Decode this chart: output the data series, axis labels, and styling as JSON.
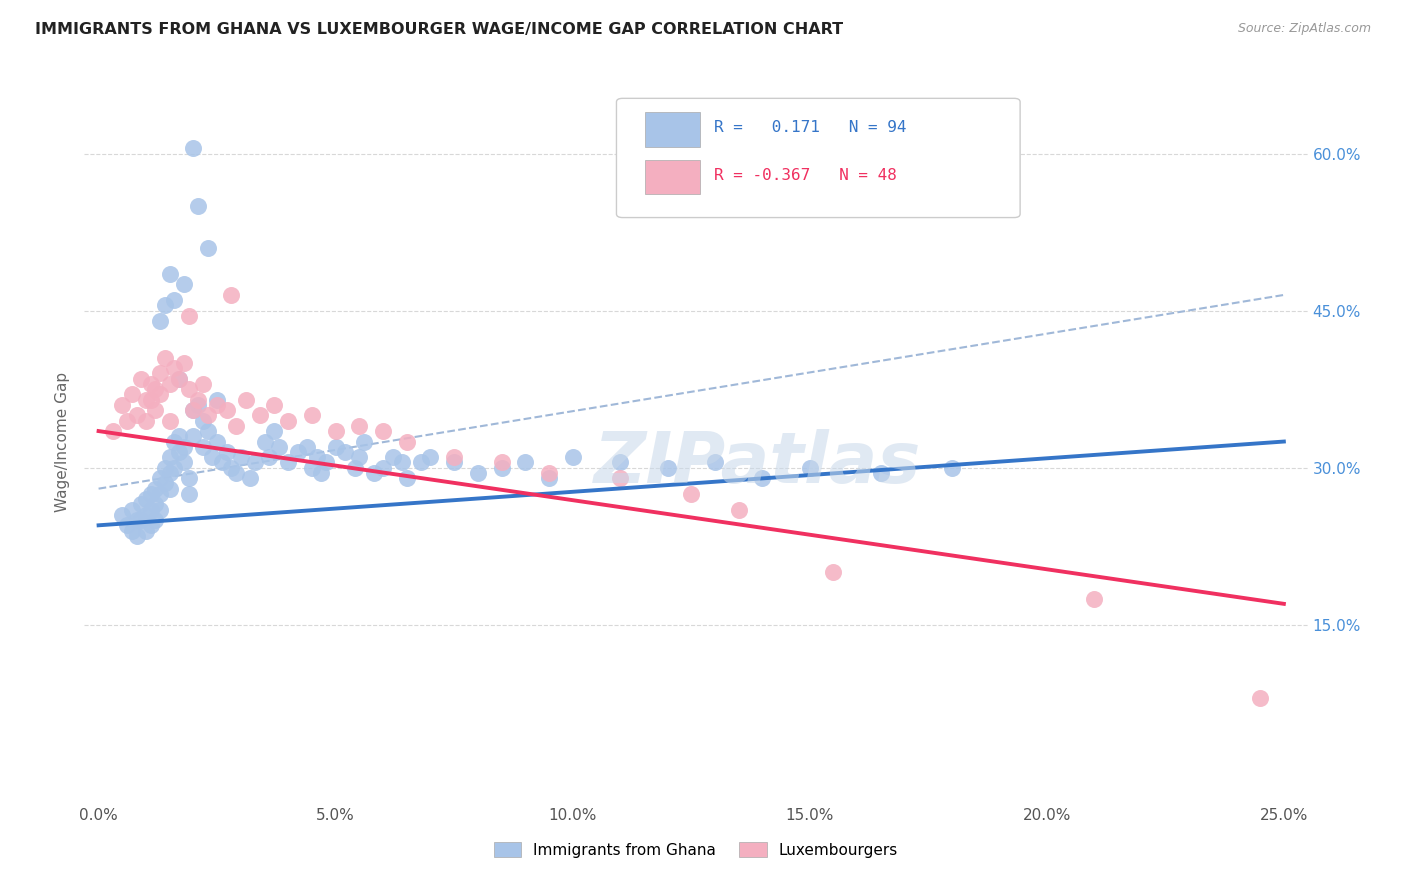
{
  "title": "IMMIGRANTS FROM GHANA VS LUXEMBOURGER WAGE/INCOME GAP CORRELATION CHART",
  "source": "Source: ZipAtlas.com",
  "ylabel": "Wage/Income Gap",
  "x_tick_labels": [
    "0.0%",
    "5.0%",
    "10.0%",
    "15.0%",
    "20.0%",
    "25.0%"
  ],
  "x_tick_values": [
    0.0,
    5.0,
    10.0,
    15.0,
    20.0,
    25.0
  ],
  "y_tick_labels_right": [
    "15.0%",
    "30.0%",
    "45.0%",
    "60.0%"
  ],
  "y_tick_values_right": [
    15.0,
    30.0,
    45.0,
    60.0
  ],
  "xlim": [
    -0.3,
    25.5
  ],
  "ylim": [
    -2.0,
    67.0
  ],
  "background_color": "#ffffff",
  "grid_color": "#d8d8d8",
  "blue_color": "#a8c4e8",
  "pink_color": "#f4afc0",
  "blue_line_color": "#3575c8",
  "pink_line_color": "#f03060",
  "dashed_line_color": "#a0b8d8",
  "R_blue": 0.171,
  "N_blue": 94,
  "R_pink": -0.367,
  "N_pink": 48,
  "legend_label_blue": "Immigrants from Ghana",
  "legend_label_pink": "Luxembourgers",
  "watermark": "ZIPatlas",
  "blue_trend_x": [
    0.0,
    25.0
  ],
  "blue_trend_y": [
    24.5,
    32.5
  ],
  "pink_trend_x": [
    0.0,
    25.0
  ],
  "pink_trend_y": [
    33.5,
    17.0
  ],
  "dashed_trend_x": [
    0.0,
    25.0
  ],
  "dashed_trend_y": [
    28.0,
    46.5
  ],
  "blue_scatter_x": [
    0.5,
    0.6,
    0.7,
    0.7,
    0.8,
    0.8,
    0.9,
    0.9,
    1.0,
    1.0,
    1.0,
    1.1,
    1.1,
    1.1,
    1.2,
    1.2,
    1.2,
    1.3,
    1.3,
    1.3,
    1.4,
    1.4,
    1.5,
    1.5,
    1.5,
    1.6,
    1.6,
    1.7,
    1.7,
    1.8,
    1.8,
    1.9,
    1.9,
    2.0,
    2.0,
    2.1,
    2.2,
    2.2,
    2.3,
    2.4,
    2.5,
    2.6,
    2.7,
    2.8,
    2.9,
    3.0,
    3.2,
    3.3,
    3.5,
    3.6,
    3.7,
    3.8,
    4.0,
    4.2,
    4.4,
    4.5,
    4.6,
    4.7,
    4.8,
    5.0,
    5.2,
    5.4,
    5.5,
    5.6,
    5.8,
    6.0,
    6.2,
    6.4,
    6.5,
    6.8,
    7.0,
    7.5,
    8.0,
    8.5,
    9.0,
    9.5,
    10.0,
    11.0,
    12.0,
    13.0,
    14.0,
    15.0,
    16.5,
    18.0,
    1.3,
    1.4,
    1.5,
    1.6,
    1.7,
    1.8,
    2.0,
    2.1,
    2.3,
    2.5
  ],
  "blue_scatter_y": [
    25.5,
    24.5,
    26.0,
    24.0,
    25.0,
    23.5,
    26.5,
    25.0,
    27.0,
    25.5,
    24.0,
    27.5,
    26.0,
    24.5,
    28.0,
    26.5,
    25.0,
    29.0,
    27.5,
    26.0,
    30.0,
    28.5,
    31.0,
    29.5,
    28.0,
    32.5,
    30.0,
    33.0,
    31.5,
    32.0,
    30.5,
    29.0,
    27.5,
    35.5,
    33.0,
    36.0,
    34.5,
    32.0,
    33.5,
    31.0,
    32.5,
    30.5,
    31.5,
    30.0,
    29.5,
    31.0,
    29.0,
    30.5,
    32.5,
    31.0,
    33.5,
    32.0,
    30.5,
    31.5,
    32.0,
    30.0,
    31.0,
    29.5,
    30.5,
    32.0,
    31.5,
    30.0,
    31.0,
    32.5,
    29.5,
    30.0,
    31.0,
    30.5,
    29.0,
    30.5,
    31.0,
    30.5,
    29.5,
    30.0,
    30.5,
    29.0,
    31.0,
    30.5,
    30.0,
    30.5,
    29.0,
    30.0,
    29.5,
    30.0,
    44.0,
    45.5,
    48.5,
    46.0,
    38.5,
    47.5,
    60.5,
    55.0,
    51.0,
    36.5
  ],
  "pink_scatter_x": [
    0.3,
    0.5,
    0.6,
    0.7,
    0.8,
    0.9,
    1.0,
    1.0,
    1.1,
    1.1,
    1.2,
    1.2,
    1.3,
    1.3,
    1.4,
    1.5,
    1.6,
    1.7,
    1.8,
    1.9,
    2.0,
    2.1,
    2.2,
    2.3,
    2.5,
    2.7,
    2.9,
    3.1,
    3.4,
    3.7,
    4.0,
    4.5,
    5.0,
    5.5,
    6.0,
    6.5,
    7.5,
    8.5,
    9.5,
    11.0,
    12.5,
    13.5,
    15.5,
    21.0,
    24.5,
    2.8,
    1.9,
    1.5
  ],
  "pink_scatter_y": [
    33.5,
    36.0,
    34.5,
    37.0,
    35.0,
    38.5,
    36.5,
    34.5,
    38.0,
    36.5,
    37.5,
    35.5,
    39.0,
    37.0,
    40.5,
    38.0,
    39.5,
    38.5,
    40.0,
    37.5,
    35.5,
    36.5,
    38.0,
    35.0,
    36.0,
    35.5,
    34.0,
    36.5,
    35.0,
    36.0,
    34.5,
    35.0,
    33.5,
    34.0,
    33.5,
    32.5,
    31.0,
    30.5,
    29.5,
    29.0,
    27.5,
    26.0,
    20.0,
    17.5,
    8.0,
    46.5,
    44.5,
    34.5
  ]
}
